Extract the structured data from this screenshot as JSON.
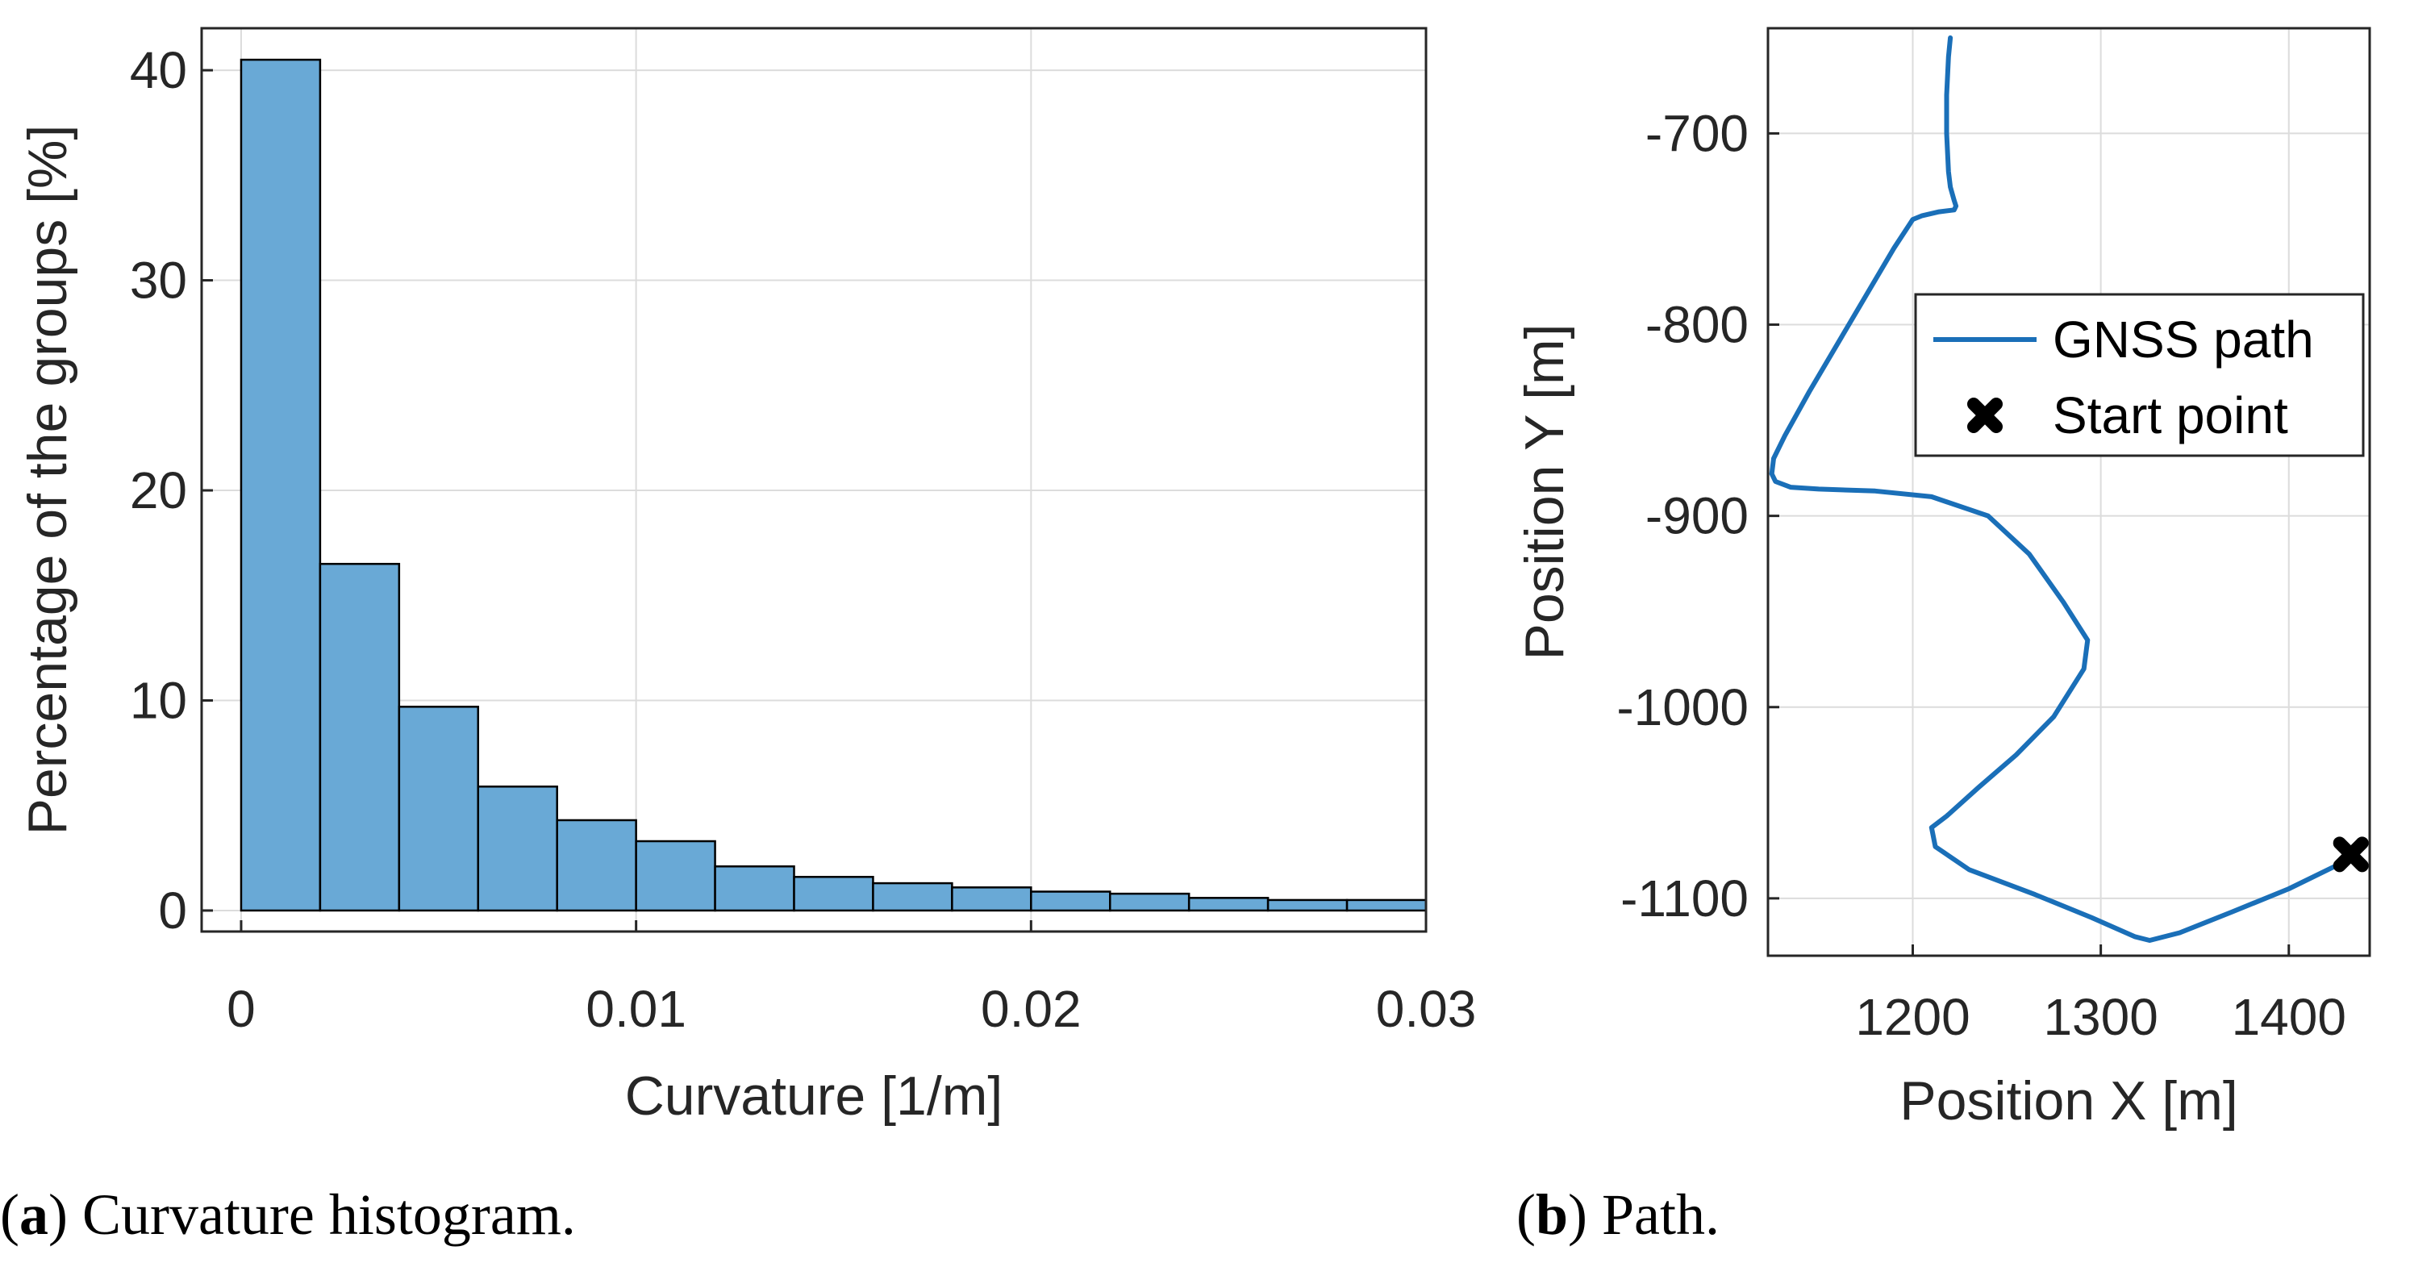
{
  "chart_data": [
    {
      "type": "bar",
      "xlabel": "Curvature [1/m]",
      "ylabel": "Percentage of the groups [%]",
      "bin_edges": [
        0,
        0.002,
        0.004,
        0.006,
        0.008,
        0.01,
        0.012,
        0.014,
        0.016,
        0.018,
        0.02,
        0.022,
        0.024,
        0.026,
        0.028,
        0.03
      ],
      "values": [
        40.5,
        16.5,
        9.7,
        5.9,
        4.3,
        3.3,
        2.1,
        1.6,
        1.3,
        1.1,
        0.9,
        0.8,
        0.6,
        0.5,
        0.5
      ],
      "xlim": [
        -0.001,
        0.03
      ],
      "ylim": [
        -1,
        42
      ],
      "xticks": [
        0,
        0.01,
        0.02,
        0.03
      ],
      "xtick_labels": [
        "0",
        "0.01",
        "0.02",
        "0.03"
      ],
      "yticks": [
        0,
        10,
        20,
        30,
        40
      ],
      "ytick_labels": [
        "0",
        "10",
        "20",
        "30",
        "40"
      ],
      "grid": true,
      "bar_color": "#69a9d6",
      "edge_color": "#000000"
    },
    {
      "type": "line",
      "xlabel": "Position X [m]",
      "ylabel": "Position Y [m]",
      "xlim": [
        1123,
        1443
      ],
      "ylim": [
        -1130,
        -645
      ],
      "xticks": [
        1200,
        1300,
        1400
      ],
      "xtick_labels": [
        "1200",
        "1300",
        "1400"
      ],
      "yticks": [
        -700,
        -800,
        -900,
        -1000,
        -1100
      ],
      "ytick_labels": [
        "-700",
        "-800",
        "-900",
        "-1000",
        "-1100"
      ],
      "grid": true,
      "legend_position": "top-right",
      "series": [
        {
          "name": "GNSS path",
          "color": "#1a6fb8",
          "x": [
            1220,
            1219,
            1218,
            1218,
            1219,
            1220,
            1222,
            1223,
            1222,
            1214,
            1205,
            1200,
            1190,
            1175,
            1160,
            1145,
            1132,
            1126,
            1125,
            1127,
            1135,
            1150,
            1180,
            1210,
            1240,
            1262,
            1280,
            1293,
            1291,
            1275,
            1255,
            1235,
            1218,
            1210,
            1212,
            1230,
            1265,
            1295,
            1318,
            1326,
            1342,
            1370,
            1400,
            1425,
            1433
          ],
          "y": [
            -650,
            -660,
            -680,
            -700,
            -720,
            -728,
            -735,
            -738,
            -740,
            -741,
            -743,
            -745,
            -760,
            -785,
            -810,
            -835,
            -858,
            -870,
            -878,
            -882,
            -885,
            -886,
            -887,
            -890,
            -900,
            -920,
            -945,
            -965,
            -980,
            -1005,
            -1025,
            -1042,
            -1057,
            -1063,
            -1073,
            -1085,
            -1098,
            -1110,
            -1120,
            -1122,
            -1118,
            -1107,
            -1095,
            -1083,
            -1077
          ]
        },
        {
          "name": "Start point",
          "color": "#000000",
          "marker": "X",
          "x": [
            1433
          ],
          "y": [
            -1077
          ]
        }
      ]
    }
  ],
  "captions": [
    {
      "letter": "a",
      "text": " Curvature histogram."
    },
    {
      "letter": "b",
      "text": " Path."
    }
  ]
}
